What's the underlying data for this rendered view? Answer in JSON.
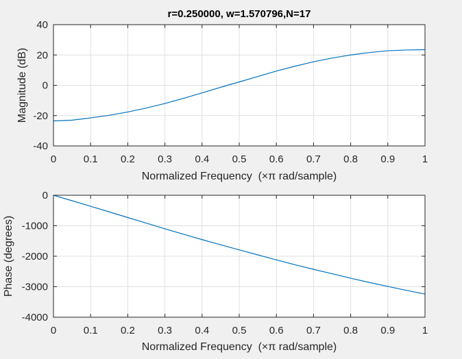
{
  "chart_data": [
    {
      "type": "line",
      "title": "r=0.250000, w=1.570796,N=17",
      "xlabel": "Normalized Frequency  (×π rad/sample)",
      "ylabel": "Magnitude (dB)",
      "xlim": [
        0,
        1
      ],
      "ylim": [
        -40,
        40
      ],
      "xticks": [
        0,
        0.1,
        0.2,
        0.3,
        0.4,
        0.5,
        0.6,
        0.7,
        0.8,
        0.9,
        1
      ],
      "xtick_labels": [
        "0",
        "0.1",
        "0.2",
        "0.3",
        "0.4",
        "0.5",
        "0.6",
        "0.7",
        "0.8",
        "0.9",
        "1"
      ],
      "yticks": [
        40,
        20,
        0,
        -20,
        -40
      ],
      "ytick_labels": [
        "40",
        "20",
        "0",
        "-20",
        "-40"
      ],
      "grid": true,
      "series": [
        {
          "x": [
            0,
            0.05,
            0.1,
            0.15,
            0.2,
            0.25,
            0.3,
            0.35,
            0.4,
            0.45,
            0.5,
            0.55,
            0.6,
            0.65,
            0.7,
            0.75,
            0.8,
            0.85,
            0.9,
            0.95,
            1
          ],
          "values": [
            -23.5,
            -23.0,
            -21.5,
            -19.8,
            -17.6,
            -15.0,
            -12.0,
            -8.6,
            -5.0,
            -1.3,
            2.2,
            5.8,
            9.4,
            12.6,
            15.5,
            18.0,
            20.0,
            21.6,
            22.8,
            23.3,
            23.5
          ]
        }
      ],
      "line_color": "#0072bd"
    },
    {
      "type": "line",
      "title": "",
      "xlabel": "Normalized Frequency  (×π rad/sample)",
      "ylabel": "Phase (degrees)",
      "xlim": [
        0,
        1
      ],
      "ylim": [
        -4000,
        0
      ],
      "xticks": [
        0,
        0.1,
        0.2,
        0.3,
        0.4,
        0.5,
        0.6,
        0.7,
        0.8,
        0.9,
        1
      ],
      "xtick_labels": [
        "0",
        "0.1",
        "0.2",
        "0.3",
        "0.4",
        "0.5",
        "0.6",
        "0.7",
        "0.8",
        "0.9",
        "1"
      ],
      "yticks": [
        0,
        -1000,
        -2000,
        -3000,
        -4000
      ],
      "ytick_labels": [
        "0",
        "-1000",
        "-2000",
        "-3000",
        "-4000"
      ],
      "grid": true,
      "series": [
        {
          "x": [
            0,
            0.05,
            0.1,
            0.15,
            0.2,
            0.25,
            0.3,
            0.35,
            0.4,
            0.45,
            0.5,
            0.55,
            0.6,
            0.65,
            0.7,
            0.75,
            0.8,
            0.85,
            0.9,
            0.95,
            1
          ],
          "values": [
            0,
            -180,
            -360,
            -545,
            -730,
            -915,
            -1100,
            -1280,
            -1455,
            -1625,
            -1790,
            -1955,
            -2120,
            -2280,
            -2430,
            -2575,
            -2720,
            -2860,
            -2990,
            -3120,
            -3240
          ]
        }
      ],
      "line_color": "#0072bd"
    }
  ],
  "colors": {
    "figure_background": "#f0f0f0",
    "axes_background": "#ffffff",
    "grid": "#dfdfdf",
    "axis_line": "#262626",
    "series": "#0072bd"
  }
}
